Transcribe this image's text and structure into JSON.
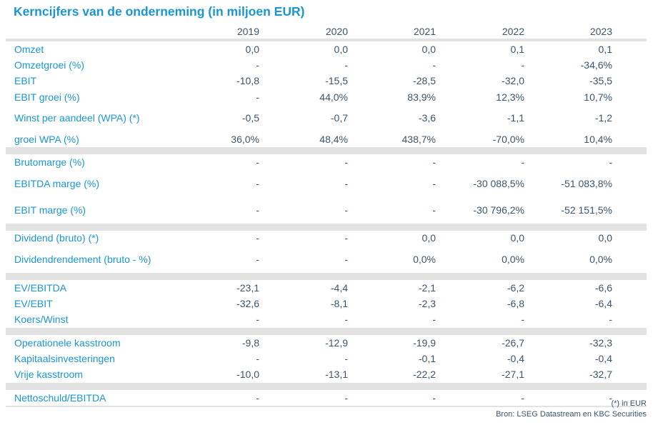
{
  "title": "Kerncijfers van de onderneming (in miljoen EUR)",
  "years": [
    "2019",
    "2020",
    "2021",
    "2022",
    "2023"
  ],
  "groups": [
    [
      {
        "label": "Omzet",
        "values": [
          "0,0",
          "0,0",
          "0,0",
          "0,1",
          "0,1"
        ]
      },
      {
        "label": "Omzetgroei (%)",
        "values": [
          "-",
          "-",
          "-",
          "-",
          "-34,6%"
        ]
      },
      {
        "label": "EBIT",
        "values": [
          "-10,8",
          "-15,5",
          "-28,5",
          "-32,0",
          "-35,5"
        ]
      },
      {
        "label": "EBIT groei (%)",
        "values": [
          "-",
          "44,0%",
          "83,9%",
          "12,3%",
          "10,7%"
        ]
      },
      {
        "label": "Winst per aandeel (WPA) (*)",
        "values": [
          "-0,5",
          "-0,7",
          "-3,6",
          "-1,1",
          "-1,2"
        ]
      },
      {
        "label": "groei WPA (%)",
        "values": [
          "36,0%",
          "48,4%",
          "438,7%",
          "-70,0%",
          "10,4%"
        ]
      }
    ],
    [
      {
        "label": "Brutomarge (%)",
        "values": [
          "-",
          "-",
          "-",
          "-",
          "-"
        ]
      },
      {
        "label": "EBITDA marge (%)",
        "values": [
          "-",
          "-",
          "-",
          "-30 088,5%",
          "-51 083,8%"
        ]
      },
      {
        "label": "EBIT marge (%)",
        "values": [
          "-",
          "-",
          "-",
          "-30 796,2%",
          "-52 151,5%"
        ]
      }
    ],
    [
      {
        "label": "Dividend (bruto) (*)",
        "values": [
          "-",
          "-",
          "0,0",
          "0,0",
          "0,0"
        ]
      },
      {
        "label": "Dividendrendement (bruto - %)",
        "values": [
          "-",
          "-",
          "0,0%",
          "0,0%",
          "0,0%"
        ]
      }
    ],
    [
      {
        "label": "EV/EBITDA",
        "values": [
          "-23,1",
          "-4,4",
          "-2,1",
          "-6,2",
          "-6,6"
        ]
      },
      {
        "label": "EV/EBIT",
        "values": [
          "-32,6",
          "-8,1",
          "-2,3",
          "-6,8",
          "-6,4"
        ]
      },
      {
        "label": "Koers/Winst",
        "values": [
          "-",
          "-",
          "-",
          "-",
          "-"
        ]
      }
    ],
    [
      {
        "label": "Operationele kasstroom",
        "values": [
          "-9,8",
          "-12,9",
          "-19,9",
          "-26,7",
          "-32,3"
        ]
      },
      {
        "label": "Kapitaalsinvesteringen",
        "values": [
          "-",
          "-",
          "-0,1",
          "-0,4",
          "-0,4"
        ]
      },
      {
        "label": "Vrije kasstroom",
        "values": [
          "-10,0",
          "-13,1",
          "-22,2",
          "-27,1",
          "-32,7"
        ]
      }
    ],
    [
      {
        "label": "Nettoschuld/EBITDA",
        "values": [
          "-",
          "-",
          "-",
          "-",
          "-"
        ]
      }
    ]
  ],
  "footnote": "(*) in EUR",
  "source": "Bron: LSEG Datastream en KBC Securities",
  "colors": {
    "label": "#1a96d4",
    "value": "#3b5670",
    "band": "#e2e2e2"
  }
}
